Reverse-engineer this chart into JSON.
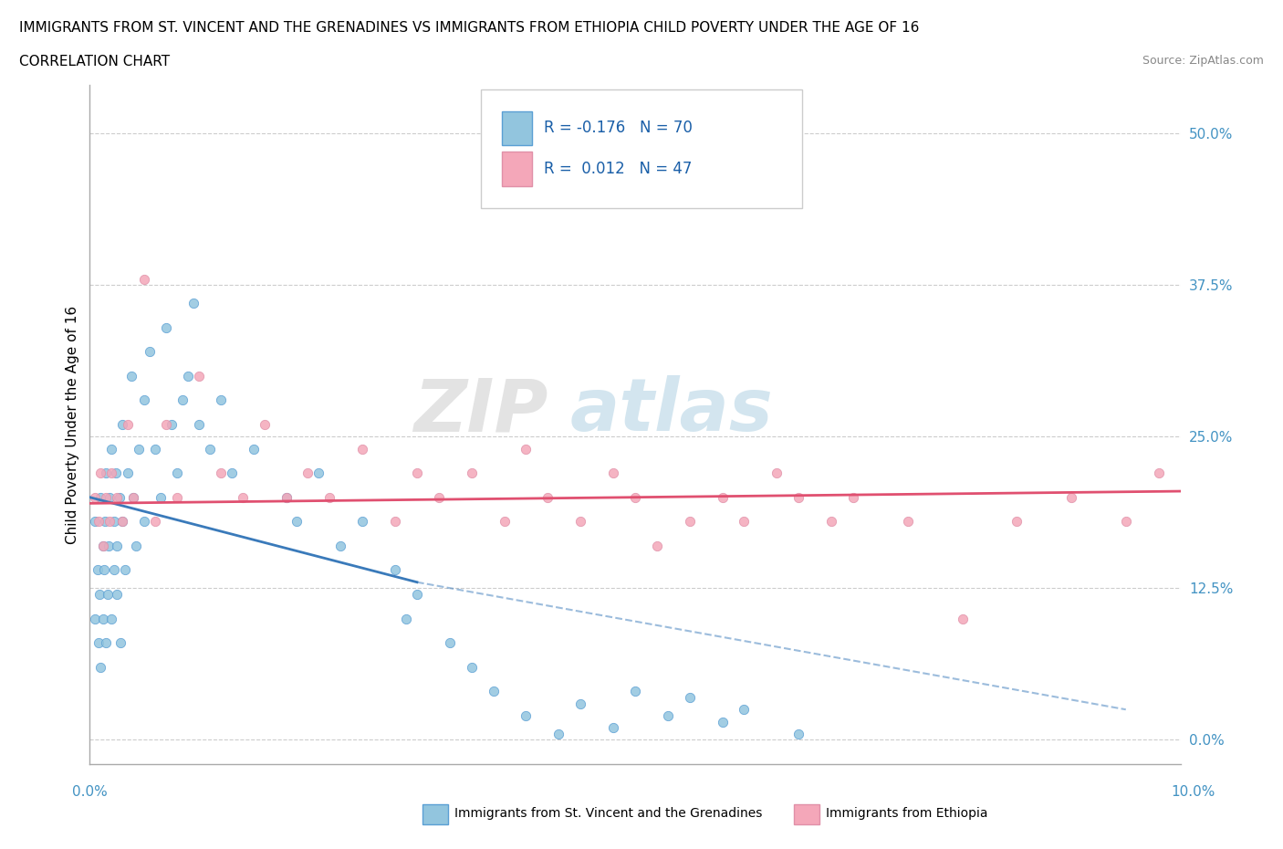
{
  "title": "IMMIGRANTS FROM ST. VINCENT AND THE GRENADINES VS IMMIGRANTS FROM ETHIOPIA CHILD POVERTY UNDER THE AGE OF 16",
  "subtitle": "CORRELATION CHART",
  "source": "Source: ZipAtlas.com",
  "ylabel": "Child Poverty Under the Age of 16",
  "ytick_values": [
    0.0,
    12.5,
    25.0,
    37.5,
    50.0
  ],
  "xlim": [
    0.0,
    10.0
  ],
  "ylim": [
    -2.0,
    54.0
  ],
  "color_blue": "#92C5DE",
  "color_pink": "#F4A7B9",
  "color_blue_line": "#3a7aba",
  "color_pink_line": "#e05070",
  "color_blue_edge": "#5a9fd4",
  "color_pink_edge": "#e090a8",
  "watermark_zip": "ZIP",
  "watermark_atlas": "atlas",
  "blue_scatter_x": [
    0.05,
    0.05,
    0.07,
    0.08,
    0.09,
    0.1,
    0.1,
    0.12,
    0.12,
    0.13,
    0.14,
    0.15,
    0.15,
    0.16,
    0.17,
    0.18,
    0.2,
    0.2,
    0.22,
    0.22,
    0.24,
    0.25,
    0.25,
    0.27,
    0.28,
    0.3,
    0.3,
    0.32,
    0.35,
    0.38,
    0.4,
    0.42,
    0.45,
    0.5,
    0.5,
    0.55,
    0.6,
    0.65,
    0.7,
    0.75,
    0.8,
    0.85,
    0.9,
    0.95,
    1.0,
    1.1,
    1.2,
    1.3,
    1.5,
    1.8,
    1.9,
    2.1,
    2.3,
    2.5,
    2.8,
    2.9,
    3.0,
    3.3,
    3.5,
    3.7,
    4.0,
    4.3,
    4.5,
    4.8,
    5.0,
    5.3,
    5.5,
    5.8,
    6.0,
    6.5
  ],
  "blue_scatter_y": [
    18.0,
    10.0,
    14.0,
    8.0,
    12.0,
    20.0,
    6.0,
    16.0,
    10.0,
    14.0,
    18.0,
    22.0,
    8.0,
    12.0,
    16.0,
    20.0,
    24.0,
    10.0,
    18.0,
    14.0,
    22.0,
    16.0,
    12.0,
    20.0,
    8.0,
    26.0,
    18.0,
    14.0,
    22.0,
    30.0,
    20.0,
    16.0,
    24.0,
    28.0,
    18.0,
    32.0,
    24.0,
    20.0,
    34.0,
    26.0,
    22.0,
    28.0,
    30.0,
    36.0,
    26.0,
    24.0,
    28.0,
    22.0,
    24.0,
    20.0,
    18.0,
    22.0,
    16.0,
    18.0,
    14.0,
    10.0,
    12.0,
    8.0,
    6.0,
    4.0,
    2.0,
    0.5,
    3.0,
    1.0,
    4.0,
    2.0,
    3.5,
    1.5,
    2.5,
    0.5
  ],
  "pink_scatter_x": [
    0.05,
    0.08,
    0.1,
    0.12,
    0.15,
    0.18,
    0.2,
    0.25,
    0.3,
    0.35,
    0.4,
    0.5,
    0.6,
    0.7,
    0.8,
    1.0,
    1.2,
    1.4,
    1.6,
    1.8,
    2.0,
    2.2,
    2.5,
    2.8,
    3.0,
    3.2,
    3.5,
    3.8,
    4.0,
    4.2,
    4.5,
    4.8,
    5.0,
    5.2,
    5.5,
    5.8,
    6.0,
    6.3,
    6.5,
    6.8,
    7.0,
    7.5,
    8.0,
    8.5,
    9.0,
    9.5,
    9.8
  ],
  "pink_scatter_y": [
    20.0,
    18.0,
    22.0,
    16.0,
    20.0,
    18.0,
    22.0,
    20.0,
    18.0,
    26.0,
    20.0,
    38.0,
    18.0,
    26.0,
    20.0,
    30.0,
    22.0,
    20.0,
    26.0,
    20.0,
    22.0,
    20.0,
    24.0,
    18.0,
    22.0,
    20.0,
    22.0,
    18.0,
    24.0,
    20.0,
    18.0,
    22.0,
    20.0,
    16.0,
    18.0,
    20.0,
    18.0,
    22.0,
    20.0,
    18.0,
    20.0,
    18.0,
    10.0,
    18.0,
    20.0,
    18.0,
    22.0
  ]
}
